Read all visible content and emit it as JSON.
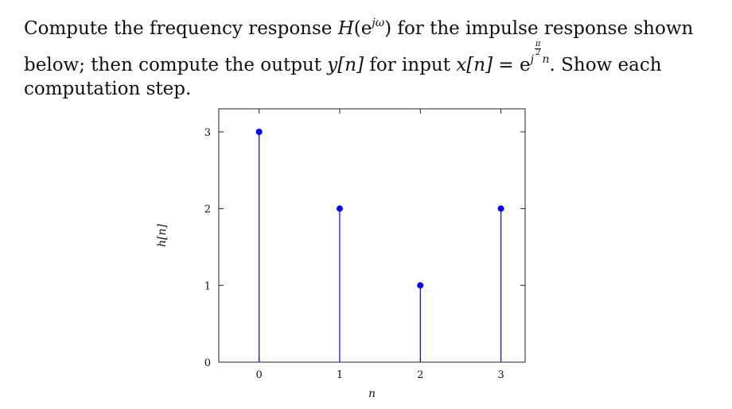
{
  "problem": {
    "line1_a": "Compute the frequency response ",
    "line1_H": "H",
    "line1_paren_open": "(e",
    "line1_exp": "jω",
    "line1_paren_close": ")",
    "line1_b": " for the impulse response shown",
    "line2_a": "below; then compute the output ",
    "line2_y": "y[n]",
    "line2_b": " for input ",
    "line2_x": "x[n]",
    "line2_eq": " = e",
    "line2_exp_j": "j",
    "line2_frac_num": "π",
    "line2_frac_den": "2",
    "line2_exp_n": "n",
    "line2_c": ". Show each",
    "line3": "computation step."
  },
  "chart_data": {
    "type": "stem",
    "x": [
      0,
      1,
      2,
      3
    ],
    "values": [
      3,
      2,
      1,
      2
    ],
    "xlabel": "n",
    "ylabel": "h[n]",
    "xticks": [
      "0",
      "1",
      "2",
      "3"
    ],
    "yticks": [
      "0",
      "1",
      "2",
      "3"
    ],
    "xlim": [
      -0.5,
      3.3
    ],
    "ylim": [
      0,
      3.3
    ],
    "grid": false,
    "stem_color": "#0000ff"
  }
}
